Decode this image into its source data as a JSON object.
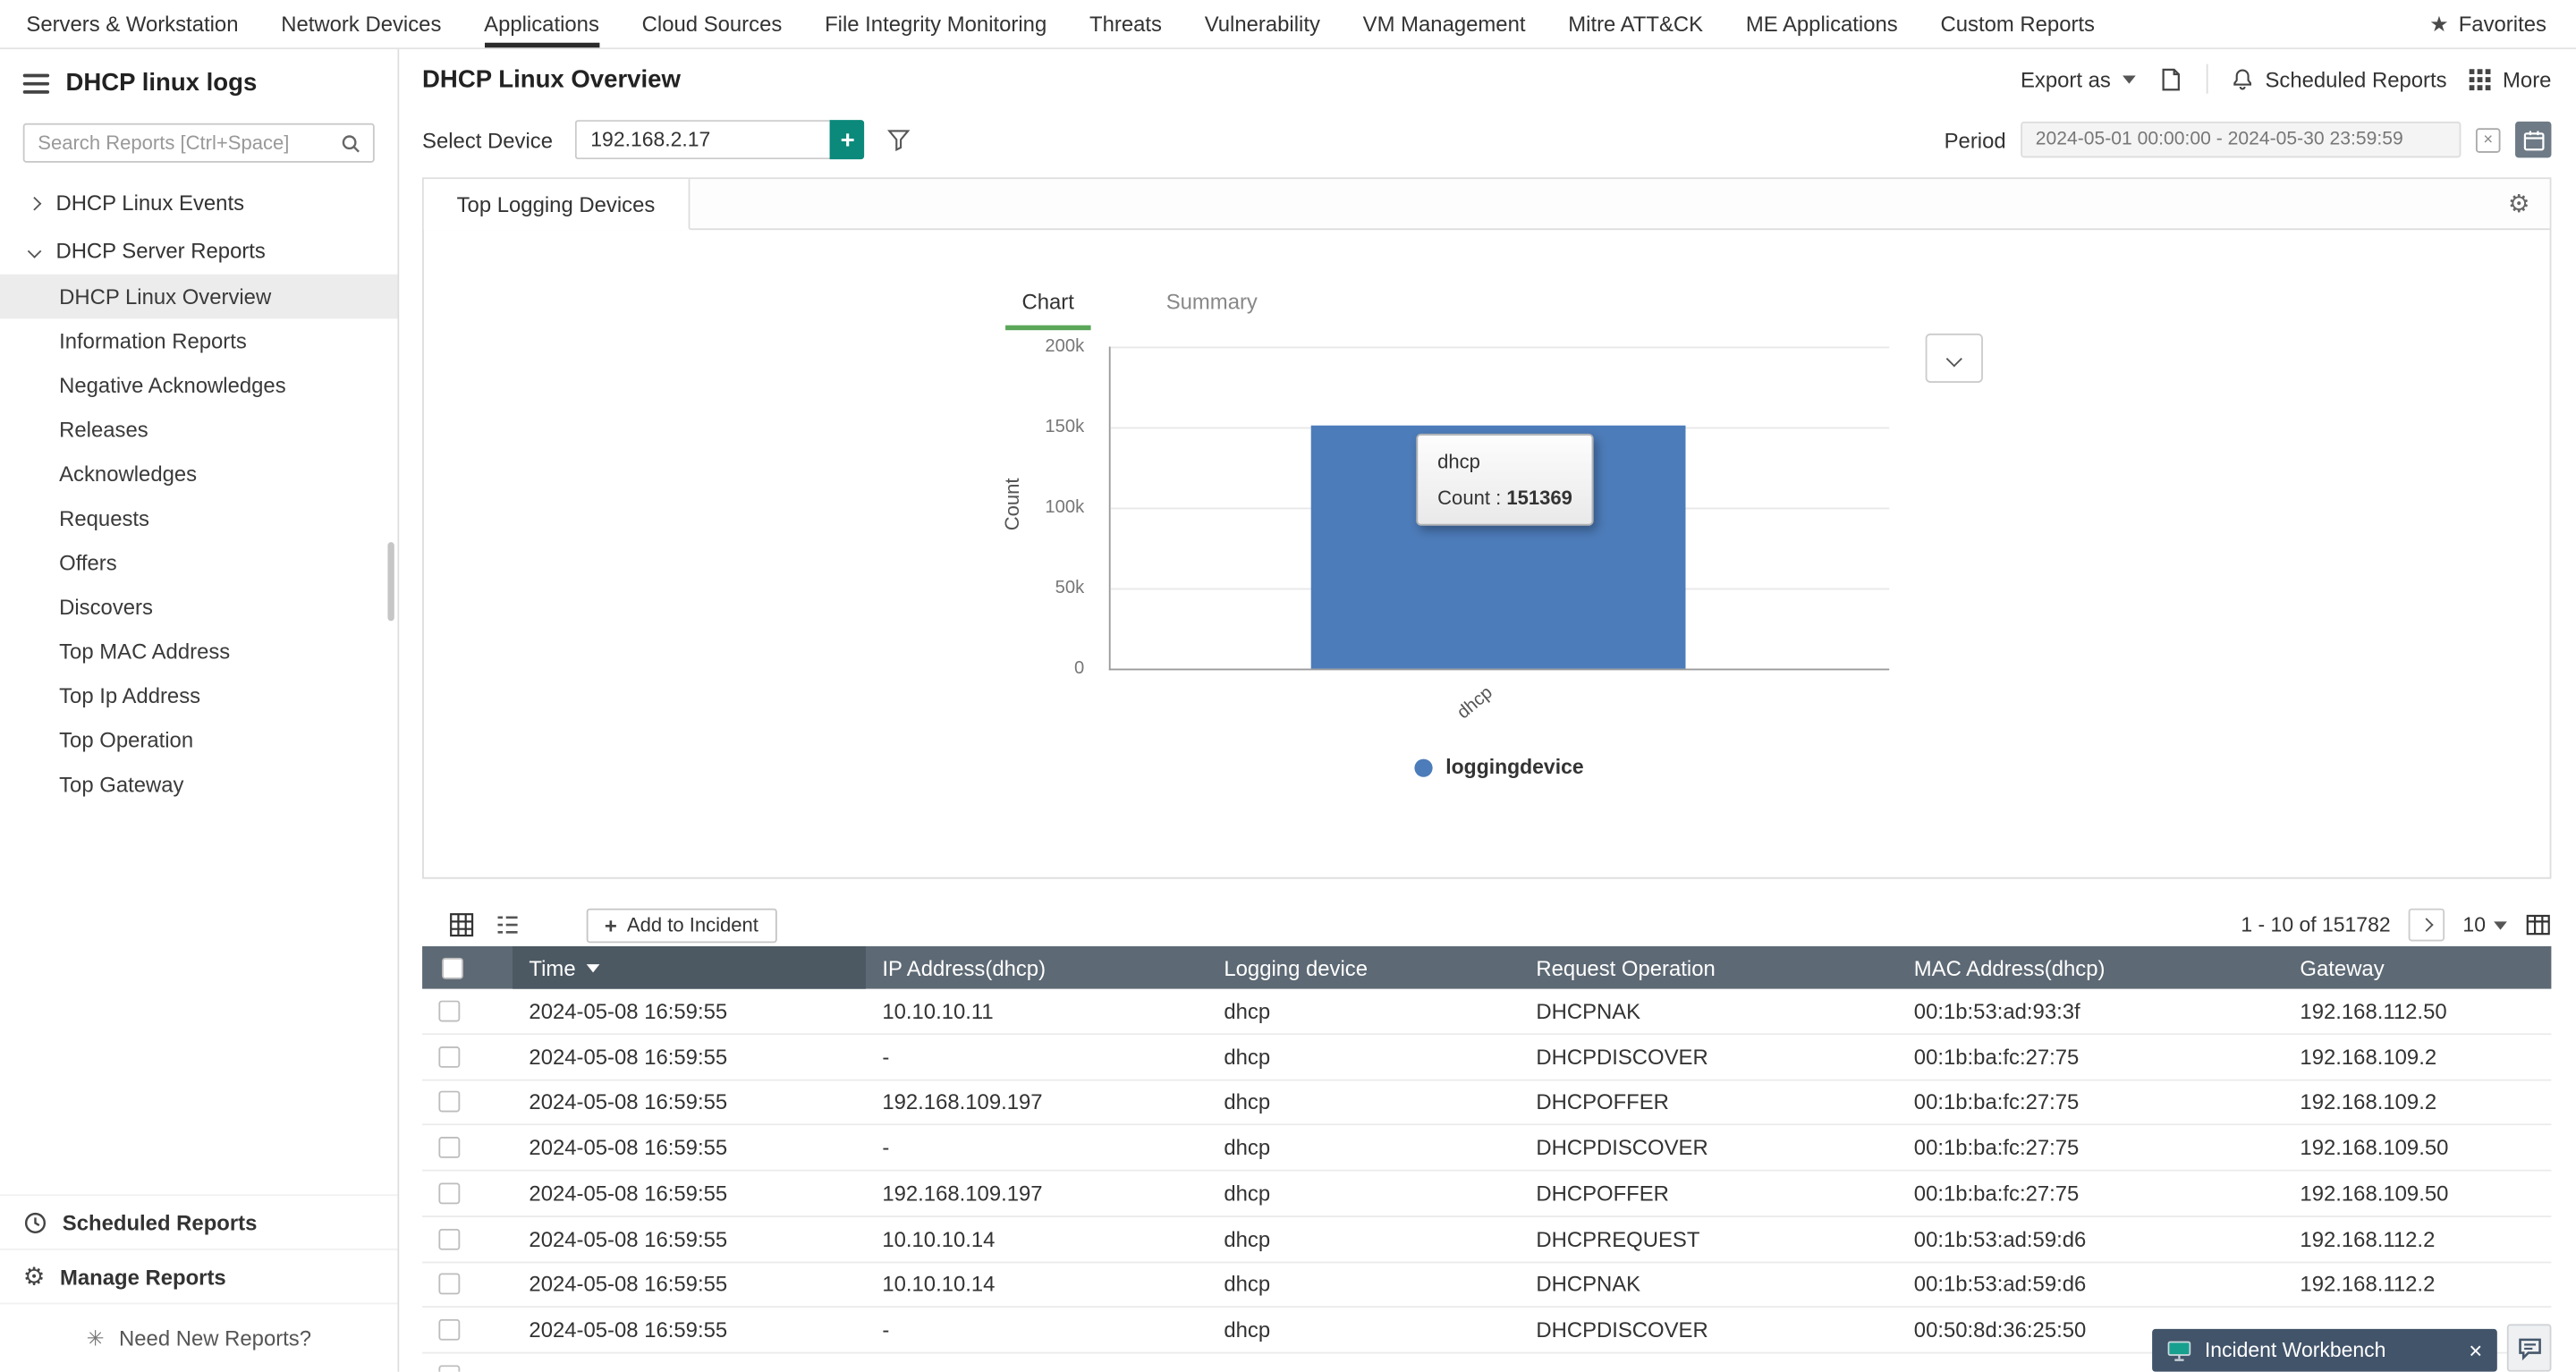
{
  "top_nav": {
    "items": [
      "Servers & Workstation",
      "Network Devices",
      "Applications",
      "Cloud Sources",
      "File Integrity Monitoring",
      "Threats",
      "Vulnerability",
      "VM Management",
      "Mitre ATT&CK",
      "ME Applications",
      "Custom Reports"
    ],
    "active": "Applications",
    "favorites_label": "Favorites"
  },
  "sidebar": {
    "title": "DHCP linux logs",
    "search_placeholder": "Search Reports [Ctrl+Space]",
    "groups": [
      {
        "label": "DHCP Linux Events",
        "expanded": false
      },
      {
        "label": "DHCP Server Reports",
        "expanded": true
      }
    ],
    "items": [
      "DHCP Linux Overview",
      "Information Reports",
      "Negative Acknowledges",
      "Releases",
      "Acknowledges",
      "Requests",
      "Offers",
      "Discovers",
      "Top MAC Address",
      "Top Ip Address",
      "Top Operation",
      "Top Gateway"
    ],
    "selected": "DHCP Linux Overview",
    "footer": {
      "scheduled": "Scheduled Reports",
      "manage": "Manage Reports",
      "need_new": "Need New Reports?"
    }
  },
  "header": {
    "title": "DHCP Linux Overview",
    "export_label": "Export as",
    "scheduled_label": "Scheduled Reports",
    "more_label": "More"
  },
  "controls": {
    "select_device_label": "Select Device",
    "device_value": "192.168.2.17",
    "period_label": "Period",
    "period_value": "2024-05-01 00:00:00 - 2024-05-30 23:59:59"
  },
  "panel": {
    "tab": "Top Logging Devices",
    "chart_tab": "Chart",
    "summary_tab": "Summary",
    "legend": "loggingdevice",
    "tooltip": {
      "title": "dhcp",
      "count_label": "Count :",
      "count_value": "151369"
    }
  },
  "chart_data": {
    "type": "bar",
    "title": "Top Logging Devices",
    "categories": [
      "dhcp"
    ],
    "series": [
      {
        "name": "loggingdevice",
        "values": [
          151369
        ]
      }
    ],
    "ylabel": "Count",
    "ylim": [
      0,
      200000
    ],
    "yticks": [
      "200k",
      "150k",
      "100k",
      "50k",
      "0"
    ],
    "grid": true,
    "legend_position": "bottom",
    "bar_color": "#4d7cba"
  },
  "table": {
    "add_to_incident": "Add to Incident",
    "pagination": "1 - 10 of 151782",
    "page_size": "10",
    "columns": [
      "Time",
      "IP Address(dhcp)",
      "Logging device",
      "Request Operation",
      "MAC Address(dhcp)",
      "Gateway"
    ],
    "rows": [
      [
        "2024-05-08 16:59:55",
        "10.10.10.11",
        "dhcp",
        "DHCPNAK",
        "00:1b:53:ad:93:3f",
        "192.168.112.50"
      ],
      [
        "2024-05-08 16:59:55",
        "-",
        "dhcp",
        "DHCPDISCOVER",
        "00:1b:ba:fc:27:75",
        "192.168.109.2"
      ],
      [
        "2024-05-08 16:59:55",
        "192.168.109.197",
        "dhcp",
        "DHCPOFFER",
        "00:1b:ba:fc:27:75",
        "192.168.109.2"
      ],
      [
        "2024-05-08 16:59:55",
        "-",
        "dhcp",
        "DHCPDISCOVER",
        "00:1b:ba:fc:27:75",
        "192.168.109.50"
      ],
      [
        "2024-05-08 16:59:55",
        "192.168.109.197",
        "dhcp",
        "DHCPOFFER",
        "00:1b:ba:fc:27:75",
        "192.168.109.50"
      ],
      [
        "2024-05-08 16:59:55",
        "10.10.10.14",
        "dhcp",
        "DHCPREQUEST",
        "00:1b:53:ad:59:d6",
        "192.168.112.2"
      ],
      [
        "2024-05-08 16:59:55",
        "10.10.10.14",
        "dhcp",
        "DHCPNAK",
        "00:1b:53:ad:59:d6",
        "192.168.112.2"
      ],
      [
        "2024-05-08 16:59:55",
        "-",
        "dhcp",
        "DHCPDISCOVER",
        "00:50:8d:36:25:50",
        ""
      ],
      [
        "",
        "",
        "",
        "",
        "",
        ""
      ]
    ]
  },
  "incident_workbench": {
    "label": "Incident Workbench"
  },
  "colors": {
    "accent_teal": "#0b897b",
    "bar_blue": "#4d7cba",
    "table_header": "#5d6974",
    "table_header_sorted": "#4c5862",
    "active_tab_green": "#5aa75a",
    "workbench_bg": "#42546a"
  }
}
